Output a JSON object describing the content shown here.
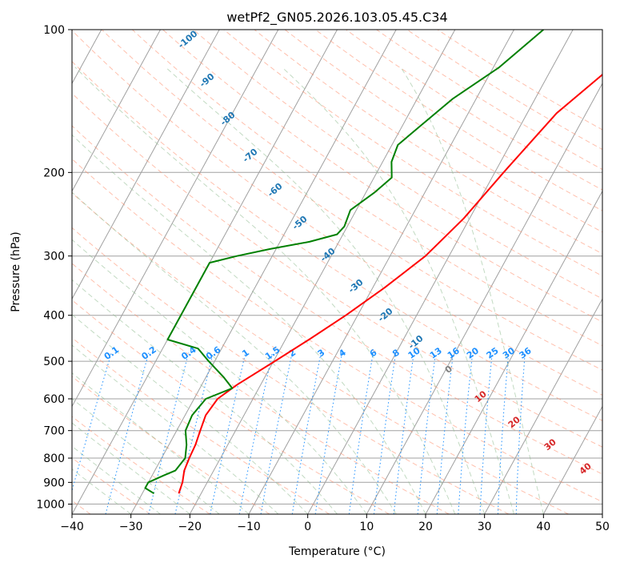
{
  "chart_data": {
    "type": "line",
    "subtype": "skew-t log-p diagram",
    "title": "wetPf2_GN05.2026.103.05.45.C34",
    "xlabel": "Temperature (°C)",
    "ylabel": "Pressure (hPa)",
    "xlim": [
      -40,
      50
    ],
    "ylim": [
      1050,
      100
    ],
    "y_scale": "log",
    "x_ticks": [
      "−40",
      "−30",
      "−20",
      "−10",
      "0",
      "10",
      "20",
      "30",
      "40",
      "50"
    ],
    "y_ticks": [
      "100",
      "200",
      "300",
      "400",
      "500",
      "600",
      "700",
      "800",
      "900",
      "1000"
    ],
    "grid": true,
    "colors": {
      "temperature": "#ff0000",
      "dewpoint": "#008000",
      "isotherm": "#a0a0a0",
      "dry_adiabat": "#ff8c69",
      "moist_adiabat": "#8fbc8f",
      "mixing_ratio": "#1e90ff",
      "label_dark_blue": "#1f77b4",
      "label_red": "#d62728",
      "label_gray": "#808080"
    },
    "series": [
      {
        "name": "temperature",
        "values": [
          [
            950,
            -23.8
          ],
          [
            925,
            -24.0
          ],
          [
            900,
            -24.2
          ],
          [
            850,
            -25.0
          ],
          [
            800,
            -25.3
          ],
          [
            750,
            -25.5
          ],
          [
            700,
            -26.0
          ],
          [
            650,
            -26.5
          ],
          [
            600,
            -26.0
          ],
          [
            560,
            -24.0
          ],
          [
            500,
            -19.8
          ],
          [
            450,
            -16.0
          ],
          [
            400,
            -12.0
          ],
          [
            350,
            -8.0
          ],
          [
            300,
            -4.0
          ],
          [
            250,
            -1.0
          ],
          [
            200,
            1.5
          ],
          [
            150,
            5.0
          ],
          [
            120,
            10.0
          ],
          [
            100,
            13.8
          ]
        ]
      },
      {
        "name": "dewpoint",
        "values": [
          [
            950,
            -28.0
          ],
          [
            925,
            -30.0
          ],
          [
            900,
            -30.0
          ],
          [
            870,
            -28.0
          ],
          [
            850,
            -26.5
          ],
          [
            800,
            -26.0
          ],
          [
            750,
            -27.0
          ],
          [
            700,
            -28.5
          ],
          [
            650,
            -28.8
          ],
          [
            600,
            -28.0
          ],
          [
            570,
            -24.5
          ],
          [
            540,
            -27.0
          ],
          [
            500,
            -31.0
          ],
          [
            470,
            -34.0
          ],
          [
            450,
            -40.0
          ],
          [
            310,
            -40.0
          ],
          [
            300,
            -36.0
          ],
          [
            290,
            -31.0
          ],
          [
            280,
            -25.0
          ],
          [
            270,
            -21.0
          ],
          [
            260,
            -20.5
          ],
          [
            240,
            -21.0
          ],
          [
            220,
            -18.5
          ],
          [
            205,
            -17.0
          ],
          [
            190,
            -18.5
          ],
          [
            175,
            -19.0
          ],
          [
            160,
            -17.0
          ],
          [
            140,
            -14.0
          ],
          [
            120,
            -9.0
          ],
          [
            100,
            -5.0
          ]
        ]
      }
    ],
    "dry_adiabat_labels": [
      "-100",
      "-90",
      "-80",
      "-70",
      "-60",
      "-50",
      "-40",
      "-30",
      "-20",
      "-10",
      "0",
      "10",
      "20",
      "30",
      "40"
    ],
    "mixing_ratio_labels": [
      "0.1",
      "0.2",
      "0.4",
      "0.6",
      "1",
      "1.5",
      "2",
      "3",
      "4",
      "6",
      "8",
      "10",
      "13",
      "16",
      "20",
      "25",
      "30",
      "36"
    ],
    "mixing_ratio_values": [
      0.1,
      0.2,
      0.4,
      0.6,
      1,
      1.5,
      2,
      3,
      4,
      6,
      8,
      10,
      13,
      16,
      20,
      25,
      30,
      36
    ]
  }
}
